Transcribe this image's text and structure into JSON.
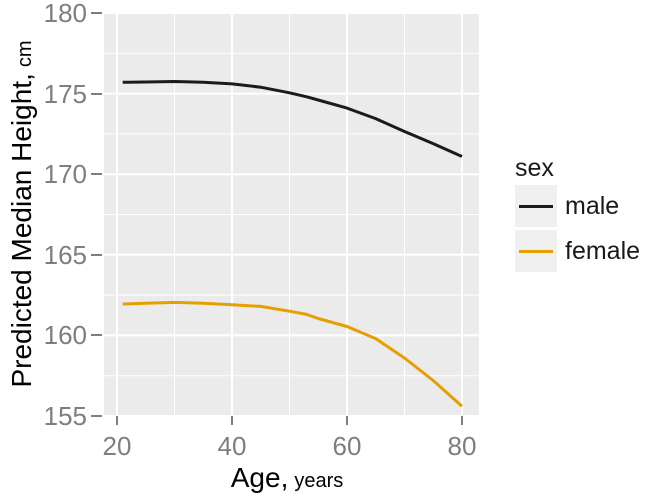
{
  "figure": {
    "background": "#FFFFFF",
    "panel_background": "#EBEBEB",
    "grid_color": "#FFFFFF",
    "tick_color": "#7E7E7E",
    "tick_label_color": "#7E7E7E",
    "axis_title_color": "#000000"
  },
  "chart_data": {
    "type": "line",
    "title": "",
    "x_axis": {
      "label_main": "Age,",
      "label_unit": "years",
      "ticks": [
        20,
        40,
        60,
        80
      ],
      "minor_ticks": [
        30,
        50,
        70
      ],
      "range": [
        17.74,
        82.96
      ]
    },
    "y_axis": {
      "label_main": "Predicted Median Height,",
      "label_unit": "cm",
      "ticks": [
        155,
        160,
        165,
        170,
        175,
        180
      ],
      "minor_ticks": [
        157.5,
        162.5,
        167.5,
        172.5,
        177.5
      ],
      "range": [
        155,
        180
      ]
    },
    "legend": {
      "title": "sex",
      "position": "right",
      "entries": [
        {
          "label": "male",
          "color": "#1B1B1B"
        },
        {
          "label": "female",
          "color": "#E69F00"
        }
      ]
    },
    "series": [
      {
        "name": "male",
        "color": "#1B1B1B",
        "x": [
          21,
          25,
          30,
          35,
          40,
          45,
          50,
          53,
          55,
          60,
          65,
          70,
          75,
          80
        ],
        "y": [
          175.7,
          175.72,
          175.75,
          175.7,
          175.6,
          175.4,
          175.05,
          174.8,
          174.6,
          174.1,
          173.45,
          172.65,
          171.9,
          171.1
        ]
      },
      {
        "name": "female",
        "color": "#E69F00",
        "x": [
          21,
          25,
          30,
          35,
          40,
          45,
          50,
          53,
          55,
          60,
          65,
          70,
          75,
          80
        ],
        "y": [
          161.95,
          162.0,
          162.05,
          162.0,
          161.9,
          161.8,
          161.5,
          161.3,
          161.05,
          160.55,
          159.8,
          158.6,
          157.2,
          155.6
        ]
      }
    ],
    "grid": "on"
  }
}
